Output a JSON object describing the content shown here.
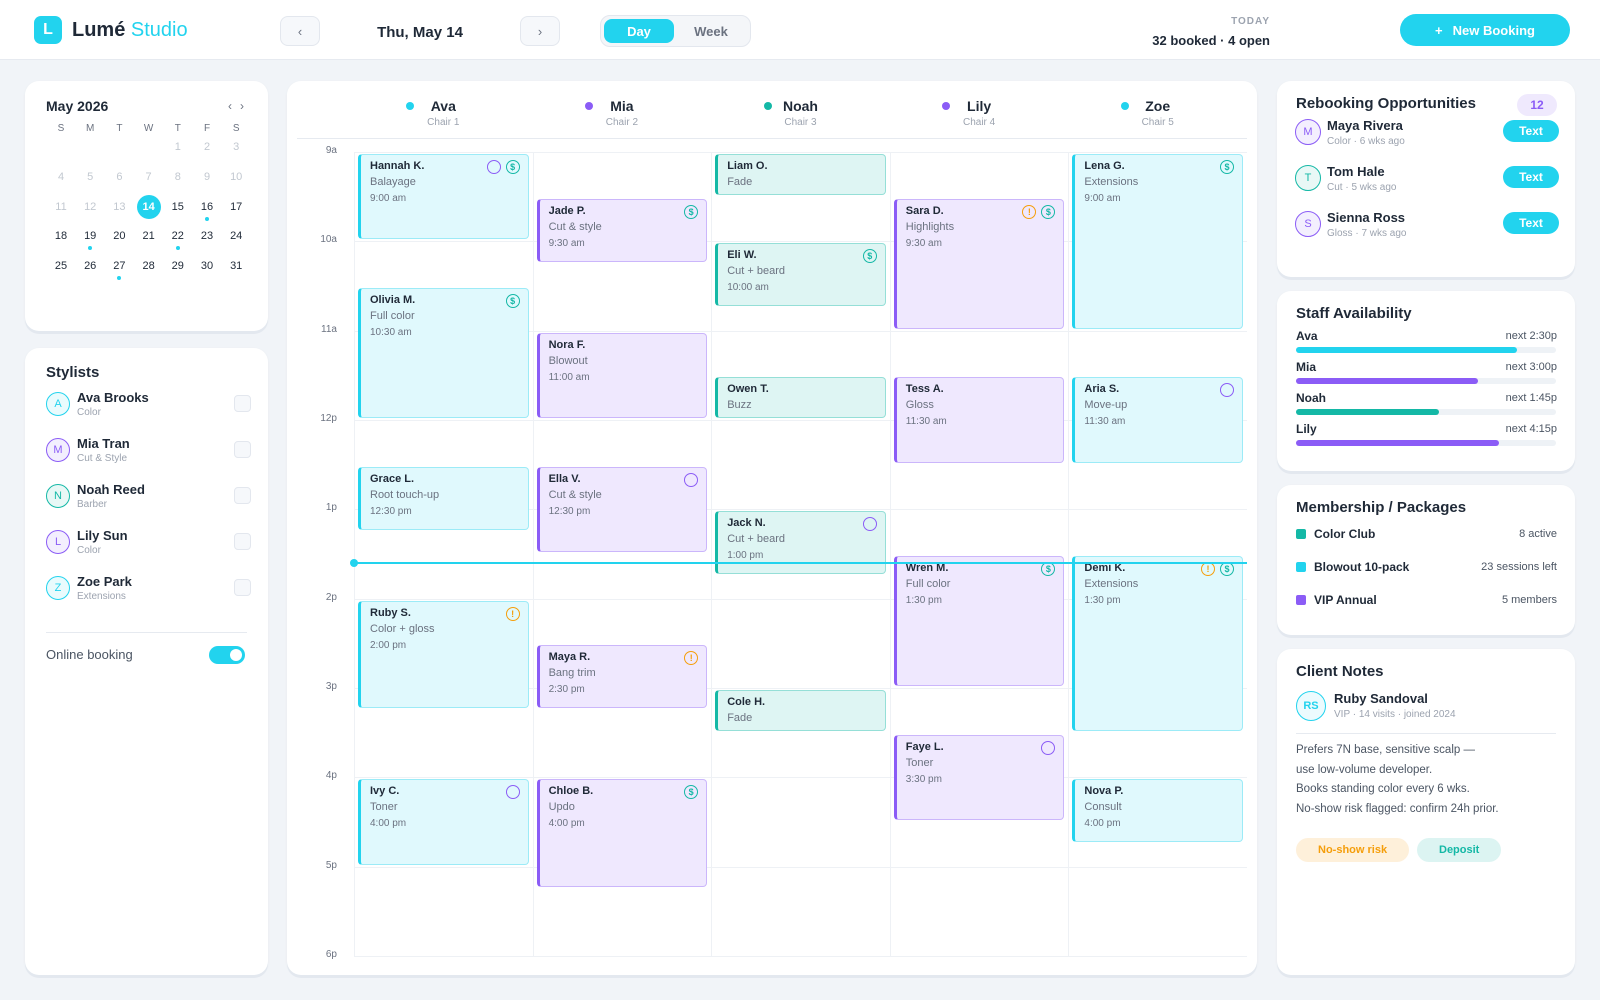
{
  "header": {
    "logo_letter": "L",
    "brand": "Lumé",
    "brand_accent": "Studio",
    "prev": "‹",
    "date": "Thu, May 14",
    "next": "›",
    "views": [
      "Day",
      "Week"
    ],
    "active_view": 0,
    "today_label": "TODAY",
    "today_summary": "32 booked · 4 open",
    "new_booking_icon": "+",
    "new_booking": "New Booking"
  },
  "calendar": {
    "title": "May 2026",
    "prev": "‹",
    "next": "›",
    "weekdays": [
      "S",
      "M",
      "T",
      "W",
      "T",
      "F",
      "S"
    ],
    "weeks": [
      [
        null,
        null,
        null,
        null,
        1,
        2,
        3
      ],
      [
        4,
        5,
        6,
        7,
        8,
        9,
        10
      ],
      [
        11,
        12,
        13,
        14,
        15,
        16,
        17
      ],
      [
        18,
        19,
        20,
        21,
        22,
        23,
        24
      ],
      [
        25,
        26,
        27,
        28,
        29,
        30,
        31
      ]
    ],
    "today": 14,
    "dot_days": [
      16,
      19,
      22,
      27
    ]
  },
  "stylists": {
    "title": "Stylists",
    "items": [
      {
        "initial": "A",
        "name": "Ava Brooks",
        "role": "Color",
        "color": "#22d3ee"
      },
      {
        "initial": "M",
        "name": "Mia Tran",
        "role": "Cut & Style",
        "color": "#8b5cf6"
      },
      {
        "initial": "N",
        "name": "Noah Reed",
        "role": "Barber",
        "color": "#14b8a6"
      },
      {
        "initial": "L",
        "name": "Lily Sun",
        "role": "Color",
        "color": "#8b5cf6"
      },
      {
        "initial": "Z",
        "name": "Zoe Park",
        "role": "Extensions",
        "color": "#22d3ee"
      }
    ],
    "online_booking": "Online booking",
    "online_enabled": true
  },
  "schedule": {
    "ylim": [
      9,
      18
    ],
    "now": 13.6,
    "hours": [
      {
        "value": 9,
        "label": "9a"
      },
      {
        "value": 10,
        "label": "10a"
      },
      {
        "value": 11,
        "label": "11a"
      },
      {
        "value": 12,
        "label": "12p"
      },
      {
        "value": 13,
        "label": "1p"
      },
      {
        "value": 14,
        "label": "2p"
      },
      {
        "value": 15,
        "label": "3p"
      },
      {
        "value": 16,
        "label": "4p"
      },
      {
        "value": 17,
        "label": "5p"
      },
      {
        "value": 18,
        "label": "6p"
      }
    ],
    "columns": [
      {
        "name": "Ava",
        "chair": "Chair 1",
        "color": "#22d3ee",
        "appointments": [
          {
            "name": "Hannah K.",
            "service": "Balayage",
            "time": "9:00 am",
            "start": 9,
            "minutes": 60,
            "note": true,
            "badges": [
              {
                "glyph": "$",
                "color": "#14b8a6"
              }
            ]
          },
          {
            "name": "Olivia M.",
            "service": "Full color",
            "time": "10:30 am",
            "start": 10.5,
            "minutes": 90,
            "note": false,
            "badges": [
              {
                "glyph": "$",
                "color": "#14b8a6"
              }
            ]
          },
          {
            "name": "Grace L.",
            "service": "Root touch-up",
            "time": "12:30 pm",
            "start": 12.5,
            "minutes": 45,
            "note": false,
            "badges": []
          },
          {
            "name": "Ruby S.",
            "service": "Color + gloss",
            "time": "2:00 pm",
            "start": 14,
            "minutes": 75,
            "note": false,
            "badges": [
              {
                "glyph": "!",
                "color": "#f59e0b"
              }
            ]
          },
          {
            "name": "Ivy C.",
            "service": "Toner",
            "time": "4:00 pm",
            "start": 16,
            "minutes": 60,
            "note": true,
            "badges": []
          }
        ]
      },
      {
        "name": "Mia",
        "chair": "Chair 2",
        "color": "#8b5cf6",
        "appointments": [
          {
            "name": "Jade P.",
            "service": "Cut & style",
            "time": "9:30 am",
            "start": 9.5,
            "minutes": 45,
            "note": false,
            "badges": [
              {
                "glyph": "$",
                "color": "#14b8a6"
              }
            ]
          },
          {
            "name": "Nora F.",
            "service": "Blowout",
            "time": "11:00 am",
            "start": 11,
            "minutes": 60,
            "note": false,
            "badges": []
          },
          {
            "name": "Ella V.",
            "service": "Cut & style",
            "time": "12:30 pm",
            "start": 12.5,
            "minutes": 60,
            "note": true,
            "badges": []
          },
          {
            "name": "Maya R.",
            "service": "Bang trim",
            "time": "2:30 pm",
            "start": 14.5,
            "minutes": 45,
            "note": false,
            "badges": [
              {
                "glyph": "!",
                "color": "#f59e0b"
              }
            ]
          },
          {
            "name": "Chloe B.",
            "service": "Updo",
            "time": "4:00 pm",
            "start": 16,
            "minutes": 75,
            "note": false,
            "badges": [
              {
                "glyph": "$",
                "color": "#14b8a6"
              }
            ]
          }
        ]
      },
      {
        "name": "Noah",
        "chair": "Chair 3",
        "color": "#14b8a6",
        "appointments": [
          {
            "name": "Liam O.",
            "service": "Fade",
            "start": 9,
            "minutes": 30,
            "note": false,
            "badges": []
          },
          {
            "name": "Eli W.",
            "service": "Cut + beard",
            "time": "10:00 am",
            "start": 10,
            "minutes": 45,
            "note": false,
            "badges": [
              {
                "glyph": "$",
                "color": "#14b8a6"
              }
            ]
          },
          {
            "name": "Owen T.",
            "service": "Buzz",
            "start": 11.5,
            "minutes": 30,
            "note": false,
            "badges": []
          },
          {
            "name": "Jack N.",
            "service": "Cut + beard",
            "time": "1:00 pm",
            "start": 13,
            "minutes": 45,
            "note": true,
            "badges": []
          },
          {
            "name": "Cole H.",
            "service": "Fade",
            "start": 15,
            "minutes": 30,
            "note": false,
            "badges": []
          }
        ]
      },
      {
        "name": "Lily",
        "chair": "Chair 4",
        "color": "#8b5cf6",
        "appointments": [
          {
            "name": "Sara D.",
            "service": "Highlights",
            "time": "9:30 am",
            "start": 9.5,
            "minutes": 90,
            "note": false,
            "badges": [
              {
                "glyph": "!",
                "color": "#f59e0b"
              },
              {
                "glyph": "$",
                "color": "#14b8a6"
              }
            ]
          },
          {
            "name": "Tess A.",
            "service": "Gloss",
            "time": "11:30 am",
            "start": 11.5,
            "minutes": 60,
            "note": false,
            "badges": []
          },
          {
            "name": "Wren M.",
            "service": "Full color",
            "time": "1:30 pm",
            "start": 13.5,
            "minutes": 90,
            "note": false,
            "badges": [
              {
                "glyph": "$",
                "color": "#14b8a6"
              }
            ]
          },
          {
            "name": "Faye L.",
            "service": "Toner",
            "time": "3:30 pm",
            "start": 15.5,
            "minutes": 60,
            "note": true,
            "badges": []
          }
        ]
      },
      {
        "name": "Zoe",
        "chair": "Chair 5",
        "color": "#22d3ee",
        "appointments": [
          {
            "name": "Lena G.",
            "service": "Extensions",
            "time": "9:00 am",
            "start": 9,
            "minutes": 120,
            "note": false,
            "badges": [
              {
                "glyph": "$",
                "color": "#14b8a6"
              }
            ]
          },
          {
            "name": "Aria S.",
            "service": "Move-up",
            "time": "11:30 am",
            "start": 11.5,
            "minutes": 60,
            "note": true,
            "badges": []
          },
          {
            "name": "Demi K.",
            "service": "Extensions",
            "time": "1:30 pm",
            "start": 13.5,
            "minutes": 120,
            "note": false,
            "badges": [
              {
                "glyph": "!",
                "color": "#f59e0b"
              },
              {
                "glyph": "$",
                "color": "#14b8a6"
              }
            ]
          },
          {
            "name": "Nova P.",
            "service": "Consult",
            "time": "4:00 pm",
            "start": 16,
            "minutes": 45,
            "note": false,
            "badges": []
          }
        ]
      }
    ]
  },
  "rebooking": {
    "title": "Rebooking Opportunities",
    "count": "12",
    "items": [
      {
        "initial": "M",
        "name": "Maya Rivera",
        "detail": "Color · 6 wks ago",
        "action": "Text",
        "color": "#8b5cf6"
      },
      {
        "initial": "T",
        "name": "Tom Hale",
        "detail": "Cut · 5 wks ago",
        "action": "Text",
        "color": "#14b8a6"
      },
      {
        "initial": "S",
        "name": "Sienna Ross",
        "detail": "Gloss · 7 wks ago",
        "action": "Text",
        "color": "#8b5cf6"
      }
    ]
  },
  "staff": {
    "title": "Staff Availability",
    "items": [
      {
        "name": "Ava",
        "next": "next 2:30p",
        "percent": 85,
        "color": "#22d3ee"
      },
      {
        "name": "Mia",
        "next": "next 3:00p",
        "percent": 70,
        "color": "#8b5cf6"
      },
      {
        "name": "Noah",
        "next": "next 1:45p",
        "percent": 55,
        "color": "#14b8a6"
      },
      {
        "name": "Lily",
        "next": "next 4:15p",
        "percent": 78,
        "color": "#8b5cf6"
      }
    ]
  },
  "membership": {
    "title": "Membership / Packages",
    "items": [
      {
        "name": "Color Club",
        "detail": "8 active",
        "color": "#14b8a6"
      },
      {
        "name": "Blowout 10-pack",
        "detail": "23 sessions left",
        "color": "#22d3ee"
      },
      {
        "name": "VIP Annual",
        "detail": "5 members",
        "color": "#8b5cf6"
      }
    ]
  },
  "client_notes": {
    "title": "Client Notes",
    "initials": "RS",
    "name": "Ruby Sandoval",
    "meta": "VIP · 14 visits · joined 2024",
    "lines": [
      "Prefers 7N base, sensitive scalp —",
      "use low-volume developer.",
      "Books standing color every 6 wks.",
      "No-show risk flagged: confirm 24h prior."
    ],
    "tags": [
      {
        "label": "No-show risk",
        "color": "#f59e0b"
      },
      {
        "label": "Deposit",
        "color": "#14b8a6"
      }
    ]
  }
}
